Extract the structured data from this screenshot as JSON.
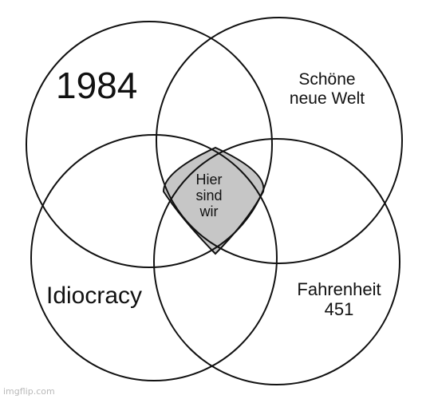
{
  "diagram": {
    "type": "venn-4",
    "sets": [
      {
        "id": "top-left",
        "label_lines": [
          "1984"
        ]
      },
      {
        "id": "top-right",
        "label_lines": [
          "Schöne",
          "neue Welt"
        ]
      },
      {
        "id": "bottom-left",
        "label_lines": [
          "Idiocracy"
        ]
      },
      {
        "id": "bottom-right",
        "label_lines": [
          "Fahrenheit",
          "451"
        ]
      }
    ],
    "center_label_lines": [
      "Hier",
      "sind",
      "wir"
    ],
    "center_fill": "#c6c6c6",
    "stroke_color": "#111111"
  },
  "watermark": "imgflip.com"
}
